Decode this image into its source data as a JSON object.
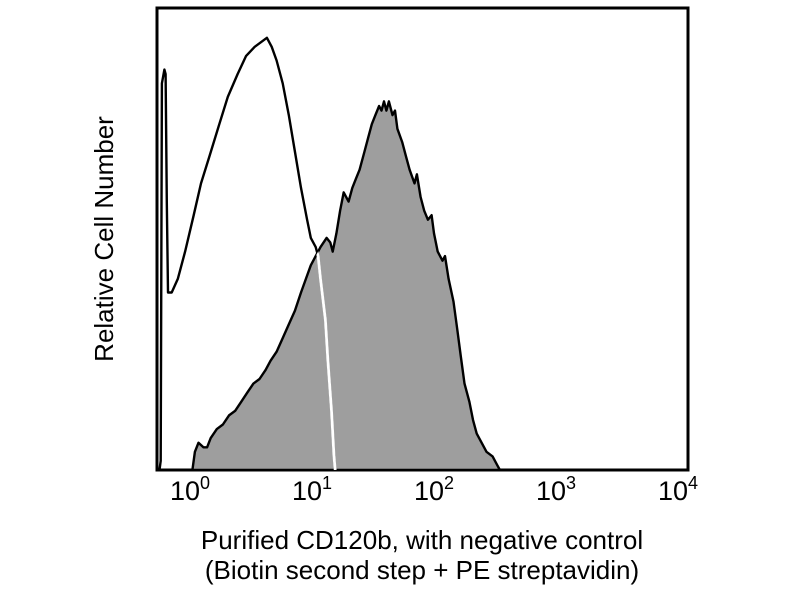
{
  "chart_data": {
    "type": "area",
    "chart_kind": "flow cytometry overlay histogram",
    "title": "",
    "ylabel": "Relative Cell Number",
    "xlabel_lines": [
      "Purified CD120b, with negative control",
      "(Biotin second step + PE streptavidin)"
    ],
    "x_scale": "log10",
    "x_range": [
      1,
      10000
    ],
    "y_axis_ticks": "none (relative scale)",
    "grid": false,
    "legend_position": "none",
    "x_ticks": [
      {
        "base": "10",
        "exponent": "0",
        "value": 1
      },
      {
        "base": "10",
        "exponent": "1",
        "value": 10
      },
      {
        "base": "10",
        "exponent": "2",
        "value": 100
      },
      {
        "base": "10",
        "exponent": "3",
        "value": 1000
      },
      {
        "base": "10",
        "exponent": "4",
        "value": 10000
      }
    ],
    "colors": {
      "outline": "#000000",
      "histogram_fill": "#9e9e9e",
      "overlap_line": "#ffffff",
      "background": "#ffffff"
    },
    "series": [
      {
        "name": "Negative control (Biotin second step + PE streptavidin)",
        "style": "open",
        "stroke": "#000000",
        "fill": "none",
        "peak_x_approx": 4.3,
        "peak_relheight": 0.95,
        "points_log10x_relheight": [
          [
            -0.25,
            0
          ],
          [
            -0.24,
            0.02
          ],
          [
            -0.23,
            0.85
          ],
          [
            -0.21,
            0.88
          ],
          [
            -0.2,
            0.87
          ],
          [
            -0.19,
            0.59
          ],
          [
            -0.18,
            0.39
          ],
          [
            -0.15,
            0.39
          ],
          [
            -0.1,
            0.42
          ],
          [
            -0.04,
            0.48
          ],
          [
            0.03,
            0.56
          ],
          [
            0.09,
            0.63
          ],
          [
            0.16,
            0.69
          ],
          [
            0.24,
            0.76
          ],
          [
            0.31,
            0.82
          ],
          [
            0.39,
            0.87
          ],
          [
            0.46,
            0.91
          ],
          [
            0.53,
            0.93
          ],
          [
            0.58,
            0.94
          ],
          [
            0.63,
            0.95
          ],
          [
            0.67,
            0.93
          ],
          [
            0.71,
            0.9
          ],
          [
            0.76,
            0.85
          ],
          [
            0.81,
            0.78
          ],
          [
            0.86,
            0.7
          ],
          [
            0.91,
            0.62
          ],
          [
            0.96,
            0.55
          ],
          [
            0.99,
            0.51
          ],
          [
            1.03,
            0.49
          ],
          [
            1.05,
            0.47
          ],
          [
            1.07,
            0.42
          ],
          [
            1.11,
            0.33
          ],
          [
            1.13,
            0.24
          ],
          [
            1.16,
            0.13
          ],
          [
            1.18,
            0.03
          ],
          [
            1.19,
            0
          ]
        ]
      },
      {
        "name": "Purified CD120b",
        "style": "filled",
        "stroke": "#000000",
        "fill": "#9e9e9e",
        "peak_x_approx": 39,
        "peak_relheight": 0.81,
        "points_log10x_relheight": [
          [
            0.02,
            0
          ],
          [
            0.04,
            0.04
          ],
          [
            0.07,
            0.06
          ],
          [
            0.11,
            0.05
          ],
          [
            0.14,
            0.05
          ],
          [
            0.17,
            0.07
          ],
          [
            0.22,
            0.09
          ],
          [
            0.27,
            0.1
          ],
          [
            0.32,
            0.12
          ],
          [
            0.37,
            0.13
          ],
          [
            0.42,
            0.15
          ],
          [
            0.47,
            0.17
          ],
          [
            0.52,
            0.19
          ],
          [
            0.57,
            0.2
          ],
          [
            0.62,
            0.22
          ],
          [
            0.66,
            0.24
          ],
          [
            0.71,
            0.26
          ],
          [
            0.76,
            0.29
          ],
          [
            0.81,
            0.32
          ],
          [
            0.86,
            0.35
          ],
          [
            0.91,
            0.39
          ],
          [
            0.95,
            0.42
          ],
          [
            0.99,
            0.45
          ],
          [
            1.03,
            0.47
          ],
          [
            1.07,
            0.49
          ],
          [
            1.12,
            0.51
          ],
          [
            1.15,
            0.5
          ],
          [
            1.17,
            0.48
          ],
          [
            1.2,
            0.52
          ],
          [
            1.23,
            0.57
          ],
          [
            1.26,
            0.61
          ],
          [
            1.3,
            0.59
          ],
          [
            1.33,
            0.62
          ],
          [
            1.36,
            0.64
          ],
          [
            1.39,
            0.66
          ],
          [
            1.43,
            0.7
          ],
          [
            1.46,
            0.73
          ],
          [
            1.49,
            0.76
          ],
          [
            1.52,
            0.78
          ],
          [
            1.55,
            0.8
          ],
          [
            1.57,
            0.79
          ],
          [
            1.59,
            0.81
          ],
          [
            1.61,
            0.79
          ],
          [
            1.63,
            0.81
          ],
          [
            1.66,
            0.78
          ],
          [
            1.68,
            0.79
          ],
          [
            1.7,
            0.75
          ],
          [
            1.74,
            0.72
          ],
          [
            1.77,
            0.69
          ],
          [
            1.8,
            0.66
          ],
          [
            1.84,
            0.63
          ],
          [
            1.86,
            0.65
          ],
          [
            1.89,
            0.6
          ],
          [
            1.92,
            0.57
          ],
          [
            1.95,
            0.55
          ],
          [
            1.98,
            0.56
          ],
          [
            2.0,
            0.52
          ],
          [
            2.03,
            0.48
          ],
          [
            2.07,
            0.46
          ],
          [
            2.09,
            0.47
          ],
          [
            2.12,
            0.42
          ],
          [
            2.16,
            0.37
          ],
          [
            2.19,
            0.31
          ],
          [
            2.22,
            0.25
          ],
          [
            2.25,
            0.19
          ],
          [
            2.29,
            0.15
          ],
          [
            2.32,
            0.11
          ],
          [
            2.35,
            0.08
          ],
          [
            2.39,
            0.06
          ],
          [
            2.43,
            0.04
          ],
          [
            2.48,
            0.03
          ],
          [
            2.52,
            0.01
          ],
          [
            2.54,
            0
          ]
        ]
      }
    ],
    "annotations": [
      "negative-control outline is drawn in white where it overlaps the gray filled histogram"
    ]
  }
}
